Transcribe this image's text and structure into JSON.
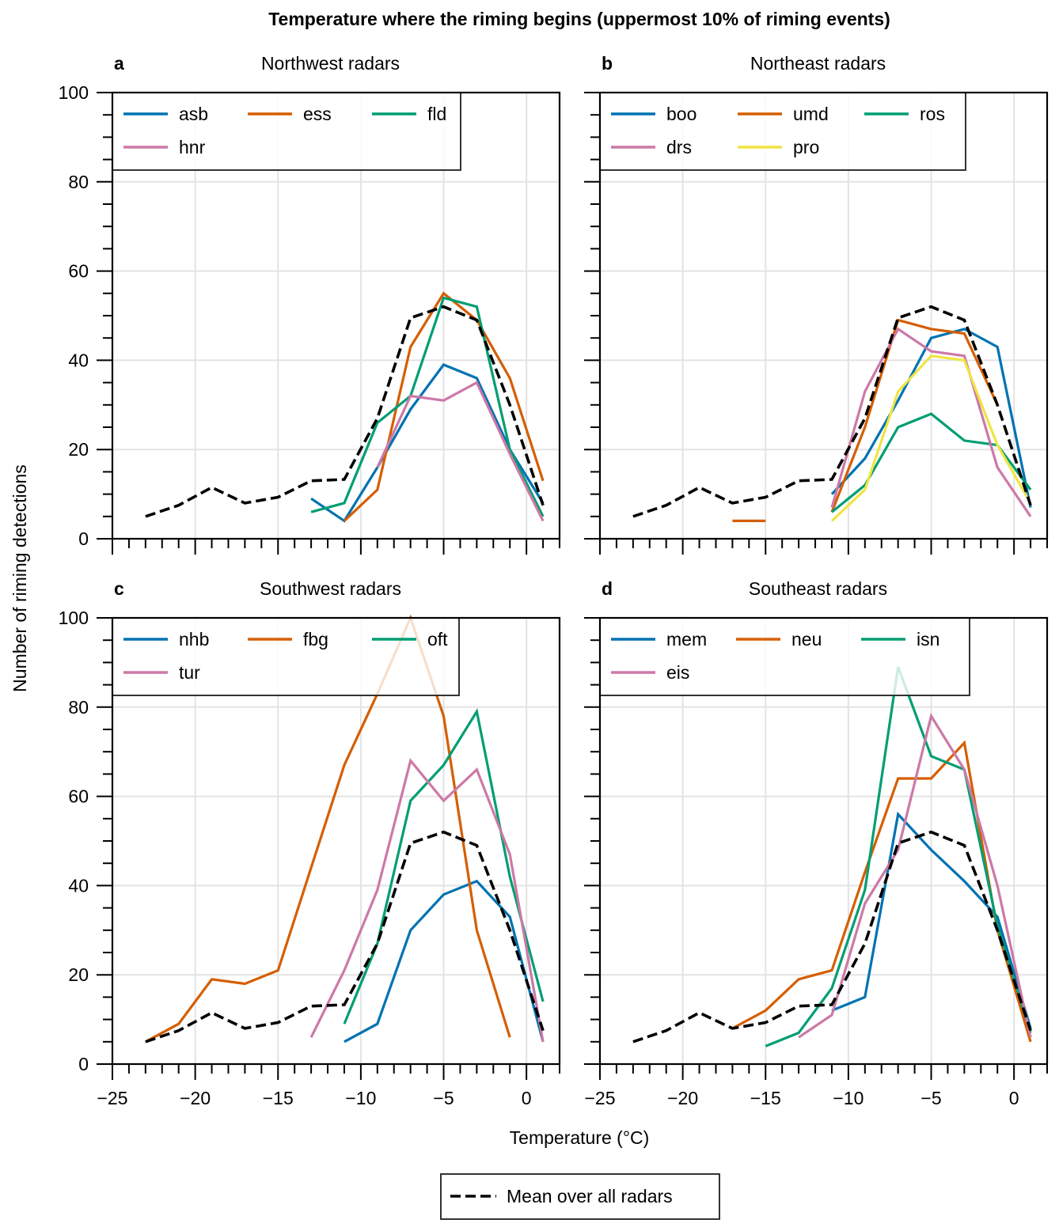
{
  "chart_data": {
    "type": "line",
    "title": "Temperature where the riming begins (uppermost 10% of riming events)",
    "xlabel": "Temperature (°C)",
    "ylabel": "Number of riming detections",
    "xlim": [
      -25,
      2
    ],
    "ylim": [
      0,
      100
    ],
    "xticks": [
      -25,
      -20,
      -15,
      -10,
      -5,
      0
    ],
    "xtick_labels": [
      "−25",
      "−20",
      "−15",
      "−10",
      "−5",
      "0"
    ],
    "yticks": [
      0,
      20,
      40,
      60,
      80,
      100
    ],
    "ytick_labels": [
      "0",
      "20",
      "40",
      "60",
      "80",
      "100"
    ],
    "grid": true,
    "x": [
      -23,
      -21,
      -19,
      -17,
      -15,
      -13,
      -11,
      -9,
      -7,
      -5,
      -3,
      -1,
      1
    ],
    "mean_series": {
      "name": "Mean over all radars",
      "style": "dashed",
      "color": "#000000",
      "values": [
        5,
        7.5,
        11.5,
        8,
        9.3,
        13,
        13.3,
        27,
        49.5,
        52,
        49,
        30,
        7.5
      ]
    },
    "figure_legend": {
      "label": "Mean over all radars",
      "placement": "bottom-center"
    },
    "panels": [
      {
        "letter": "a",
        "title": "Northwest radars",
        "legend_placement": "top-left",
        "series": [
          {
            "name": "asb",
            "color": "#0072b2",
            "values": [
              null,
              null,
              null,
              null,
              null,
              9,
              4,
              16,
              29,
              39,
              36,
              20,
              8
            ]
          },
          {
            "name": "ess",
            "color": "#d55e00",
            "values": [
              null,
              null,
              null,
              null,
              null,
              null,
              4,
              11,
              43,
              55,
              49,
              36,
              13
            ]
          },
          {
            "name": "fld",
            "color": "#009e73",
            "values": [
              null,
              null,
              null,
              null,
              null,
              6,
              8,
              26,
              32,
              54,
              52,
              20,
              5
            ]
          },
          {
            "name": "hnr",
            "color": "#cc79a7",
            "values": [
              null,
              null,
              null,
              null,
              null,
              null,
              null,
              16,
              32,
              31,
              35,
              19,
              4
            ]
          }
        ]
      },
      {
        "letter": "b",
        "title": "Northeast radars",
        "legend_placement": "top-left",
        "series": [
          {
            "name": "boo",
            "color": "#0072b2",
            "values": [
              null,
              null,
              null,
              null,
              null,
              null,
              10,
              18,
              31,
              45,
              47,
              43,
              7
            ]
          },
          {
            "name": "umd",
            "color": "#d55e00",
            "values": [
              null,
              null,
              null,
              4,
              4,
              null,
              6,
              25,
              49,
              47,
              46,
              30,
              null
            ]
          },
          {
            "name": "ros",
            "color": "#009e73",
            "values": [
              null,
              null,
              null,
              null,
              null,
              null,
              6,
              12,
              25,
              28,
              22,
              21,
              11
            ]
          },
          {
            "name": "drs",
            "color": "#cc79a7",
            "values": [
              null,
              null,
              null,
              null,
              5,
              null,
              7,
              33,
              47,
              42,
              41,
              16,
              5
            ]
          },
          {
            "name": "pro",
            "color": "#f0e442",
            "values": [
              null,
              null,
              null,
              null,
              null,
              null,
              4,
              11,
              33,
              41,
              40,
              21,
              8
            ]
          }
        ]
      },
      {
        "letter": "c",
        "title": "Southwest radars",
        "legend_placement": "top-left",
        "series": [
          {
            "name": "nhb",
            "color": "#0072b2",
            "values": [
              null,
              null,
              null,
              null,
              null,
              null,
              5,
              9,
              30,
              38,
              41,
              33,
              5
            ]
          },
          {
            "name": "fbg",
            "color": "#d55e00",
            "values": [
              5,
              9,
              19,
              18,
              21,
              44,
              67,
              83,
              100,
              78,
              30,
              6,
              null
            ]
          },
          {
            "name": "oft",
            "color": "#009e73",
            "values": [
              null,
              null,
              null,
              null,
              null,
              null,
              9,
              27,
              59,
              67,
              79,
              42,
              14
            ]
          },
          {
            "name": "tur",
            "color": "#cc79a7",
            "values": [
              null,
              null,
              null,
              null,
              null,
              6,
              21,
              39,
              68,
              59,
              66,
              47,
              5
            ]
          }
        ]
      },
      {
        "letter": "d",
        "title": "Southeast radars",
        "legend_placement": "top-left",
        "series": [
          {
            "name": "mem",
            "color": "#0072b2",
            "values": [
              null,
              null,
              null,
              null,
              null,
              null,
              12,
              15,
              56,
              48,
              41,
              33,
              8
            ]
          },
          {
            "name": "neu",
            "color": "#d55e00",
            "values": [
              null,
              null,
              null,
              8,
              12,
              19,
              21,
              43,
              64,
              64,
              72,
              30,
              5
            ]
          },
          {
            "name": "isn",
            "color": "#009e73",
            "values": [
              null,
              null,
              null,
              null,
              4,
              7,
              17,
              39,
              89,
              69,
              66,
              31,
              7
            ]
          },
          {
            "name": "eis",
            "color": "#cc79a7",
            "values": [
              null,
              null,
              null,
              null,
              null,
              6,
              11,
              36,
              48,
              78,
              66,
              40,
              6
            ]
          }
        ]
      }
    ]
  }
}
